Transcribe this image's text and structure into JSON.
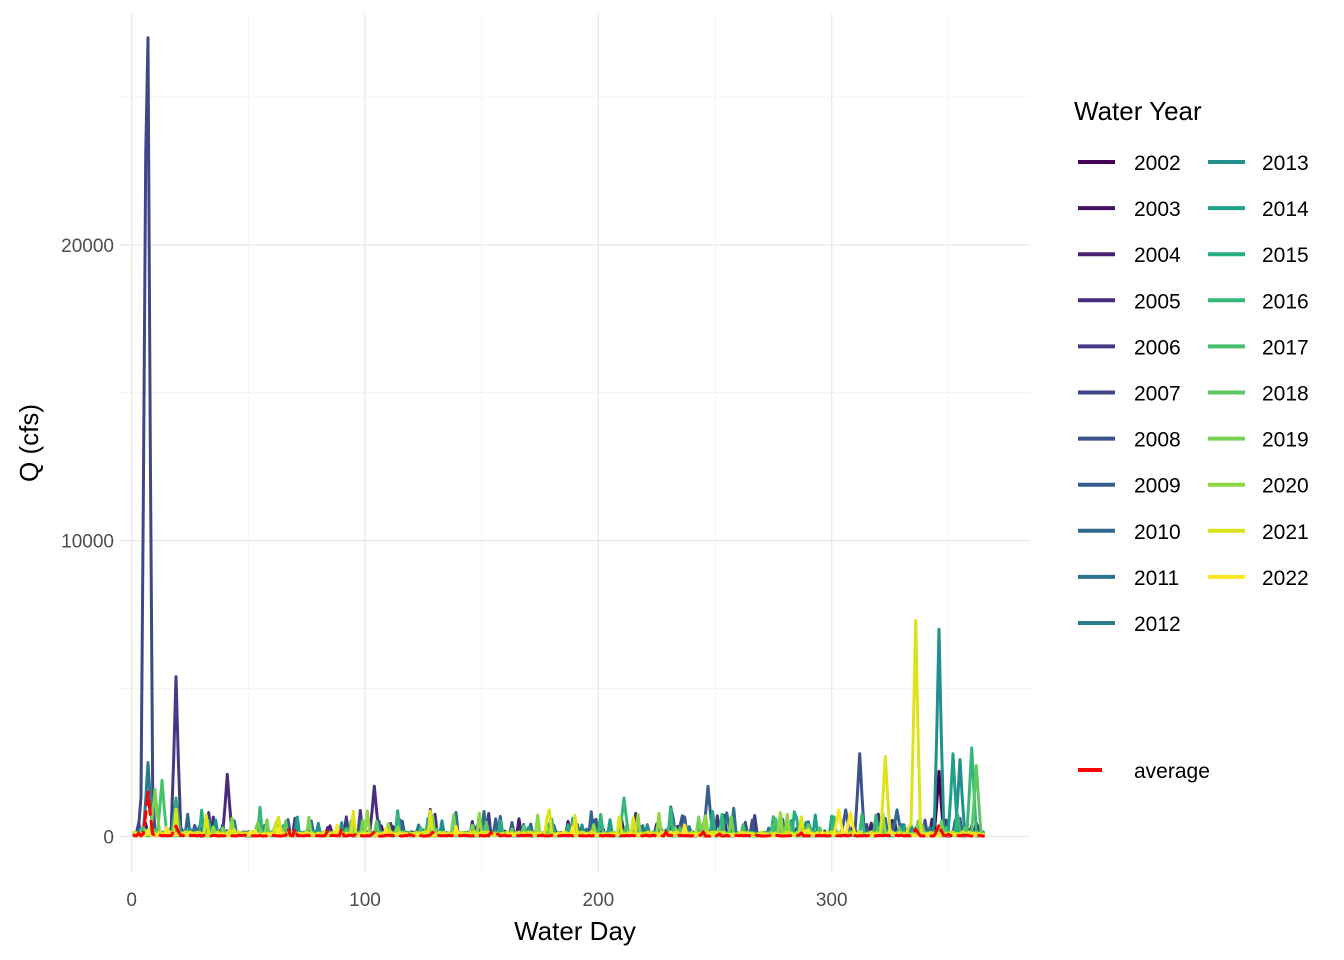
{
  "chart_data": {
    "type": "line",
    "xlabel": "Water Day",
    "ylabel": "Q (cfs)",
    "legend_title": "Water Year",
    "legend_placement": "right",
    "grid": true,
    "xlim": [
      -5,
      385
    ],
    "ylim": [
      -1200,
      27800
    ],
    "x_ticks": [
      0,
      100,
      200,
      300
    ],
    "x_tick_labels": [
      "0",
      "100",
      "200",
      "300"
    ],
    "y_ticks": [
      0,
      10000,
      20000
    ],
    "y_tick_labels": [
      "0",
      "10000",
      "20000"
    ],
    "series": [
      {
        "name": "2002",
        "color": "#440154",
        "peaks": [
          [
            346,
            2200
          ],
          [
            190,
            120
          ]
        ]
      },
      {
        "name": "2003",
        "color": "#471164",
        "peaks": [
          [
            88,
            150
          ],
          [
            160,
            180
          ]
        ]
      },
      {
        "name": "2004",
        "color": "#481F70",
        "peaks": [
          [
            120,
            140
          ],
          [
            300,
            200
          ]
        ]
      },
      {
        "name": "2005",
        "color": "#472D7B",
        "peaks": [
          [
            104,
            1700
          ],
          [
            41,
            2100
          ]
        ]
      },
      {
        "name": "2006",
        "color": "#443A83",
        "peaks": [
          [
            19,
            5400
          ],
          [
            148,
            350
          ]
        ]
      },
      {
        "name": "2007",
        "color": "#404688",
        "peaks": [
          [
            7,
            27000
          ],
          [
            6,
            23000
          ]
        ]
      },
      {
        "name": "2008",
        "color": "#3B528B",
        "peaks": [
          [
            312,
            2800
          ],
          [
            236,
            700
          ]
        ]
      },
      {
        "name": "2009",
        "color": "#365D8D",
        "peaks": [
          [
            247,
            1700
          ],
          [
            306,
            900
          ]
        ]
      },
      {
        "name": "2010",
        "color": "#31688E",
        "peaks": [
          [
            328,
            900
          ],
          [
            195,
            250
          ]
        ]
      },
      {
        "name": "2011",
        "color": "#2C728E",
        "peaks": [
          [
            255,
            800
          ],
          [
            290,
            500
          ]
        ]
      },
      {
        "name": "2012",
        "color": "#287C8E",
        "peaks": [
          [
            7,
            2500
          ],
          [
            330,
            400
          ]
        ]
      },
      {
        "name": "2013",
        "color": "#21908C",
        "peaks": [
          [
            346,
            7000
          ],
          [
            355,
            2600
          ]
        ]
      },
      {
        "name": "2014",
        "color": "#1FA088",
        "peaks": [
          [
            352,
            2800
          ],
          [
            170,
            300
          ]
        ]
      },
      {
        "name": "2015",
        "color": "#27AD81",
        "peaks": [
          [
            19,
            1300
          ],
          [
            30,
            200
          ]
        ]
      },
      {
        "name": "2016",
        "color": "#35B779",
        "peaks": [
          [
            211,
            1300
          ],
          [
            360,
            3000
          ]
        ]
      },
      {
        "name": "2017",
        "color": "#47C16E",
        "peaks": [
          [
            13,
            1900
          ],
          [
            276,
            600
          ]
        ]
      },
      {
        "name": "2018",
        "color": "#5DC863",
        "peaks": [
          [
            362,
            2400
          ],
          [
            290,
            400
          ]
        ]
      },
      {
        "name": "2019",
        "color": "#75D054",
        "peaks": [
          [
            10,
            1600
          ],
          [
            54,
            450
          ]
        ]
      },
      {
        "name": "2020",
        "color": "#8FD744",
        "peaks": [
          [
            62,
            500
          ],
          [
            178,
            300
          ]
        ]
      },
      {
        "name": "2021",
        "color": "#DCE319",
        "peaks": [
          [
            336,
            7300
          ],
          [
            323,
            2700
          ]
        ]
      },
      {
        "name": "2022",
        "color": "#FDE725",
        "peaks": [
          [
            303,
            900
          ],
          [
            308,
            800
          ]
        ]
      }
    ],
    "average": {
      "name": "average",
      "color": "#FF0000",
      "peaks": [
        [
          7,
          1500
        ],
        [
          19,
          350
        ],
        [
          346,
          400
        ],
        [
          104,
          150
        ],
        [
          336,
          250
        ]
      ]
    }
  }
}
